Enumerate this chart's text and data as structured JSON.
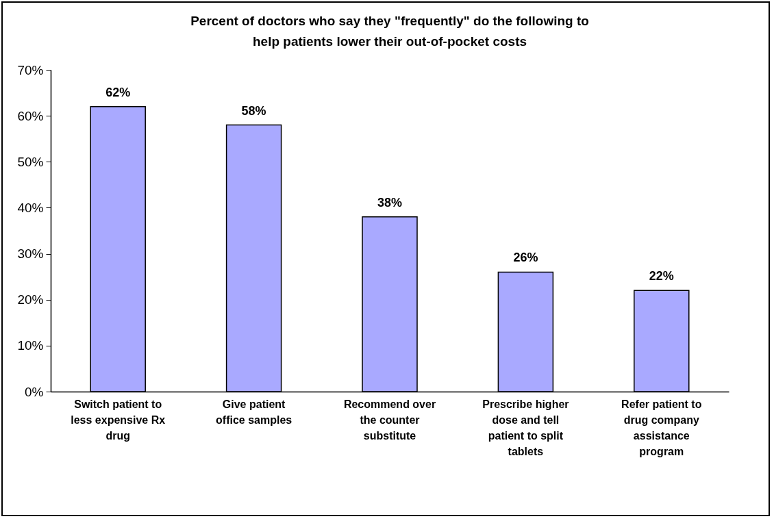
{
  "chart_data": {
    "type": "bar",
    "title": "Percent of doctors who say they \"frequently\" do the following to help patients lower their out-of-pocket costs",
    "categories": [
      "Switch patient to less expensive Rx drug",
      "Give patient office samples",
      "Recommend over the counter substitute",
      "Prescribe higher dose and tell patient to split tablets",
      "Refer patient to drug company assistance program"
    ],
    "values": [
      62,
      58,
      38,
      26,
      22
    ],
    "value_labels": [
      "62%",
      "58%",
      "38%",
      "26%",
      "22%"
    ],
    "color": "#a9a9ff",
    "ylim": [
      0,
      70
    ],
    "yticks": [
      {
        "value": 0,
        "label": "0%"
      },
      {
        "value": 10,
        "label": "10%"
      },
      {
        "value": 20,
        "label": "20%"
      },
      {
        "value": 30,
        "label": "30%"
      },
      {
        "value": 40,
        "label": "40%"
      },
      {
        "value": 50,
        "label": "50%"
      },
      {
        "value": 60,
        "label": "60%"
      },
      {
        "value": 70,
        "label": "70%"
      }
    ],
    "grid": false
  }
}
